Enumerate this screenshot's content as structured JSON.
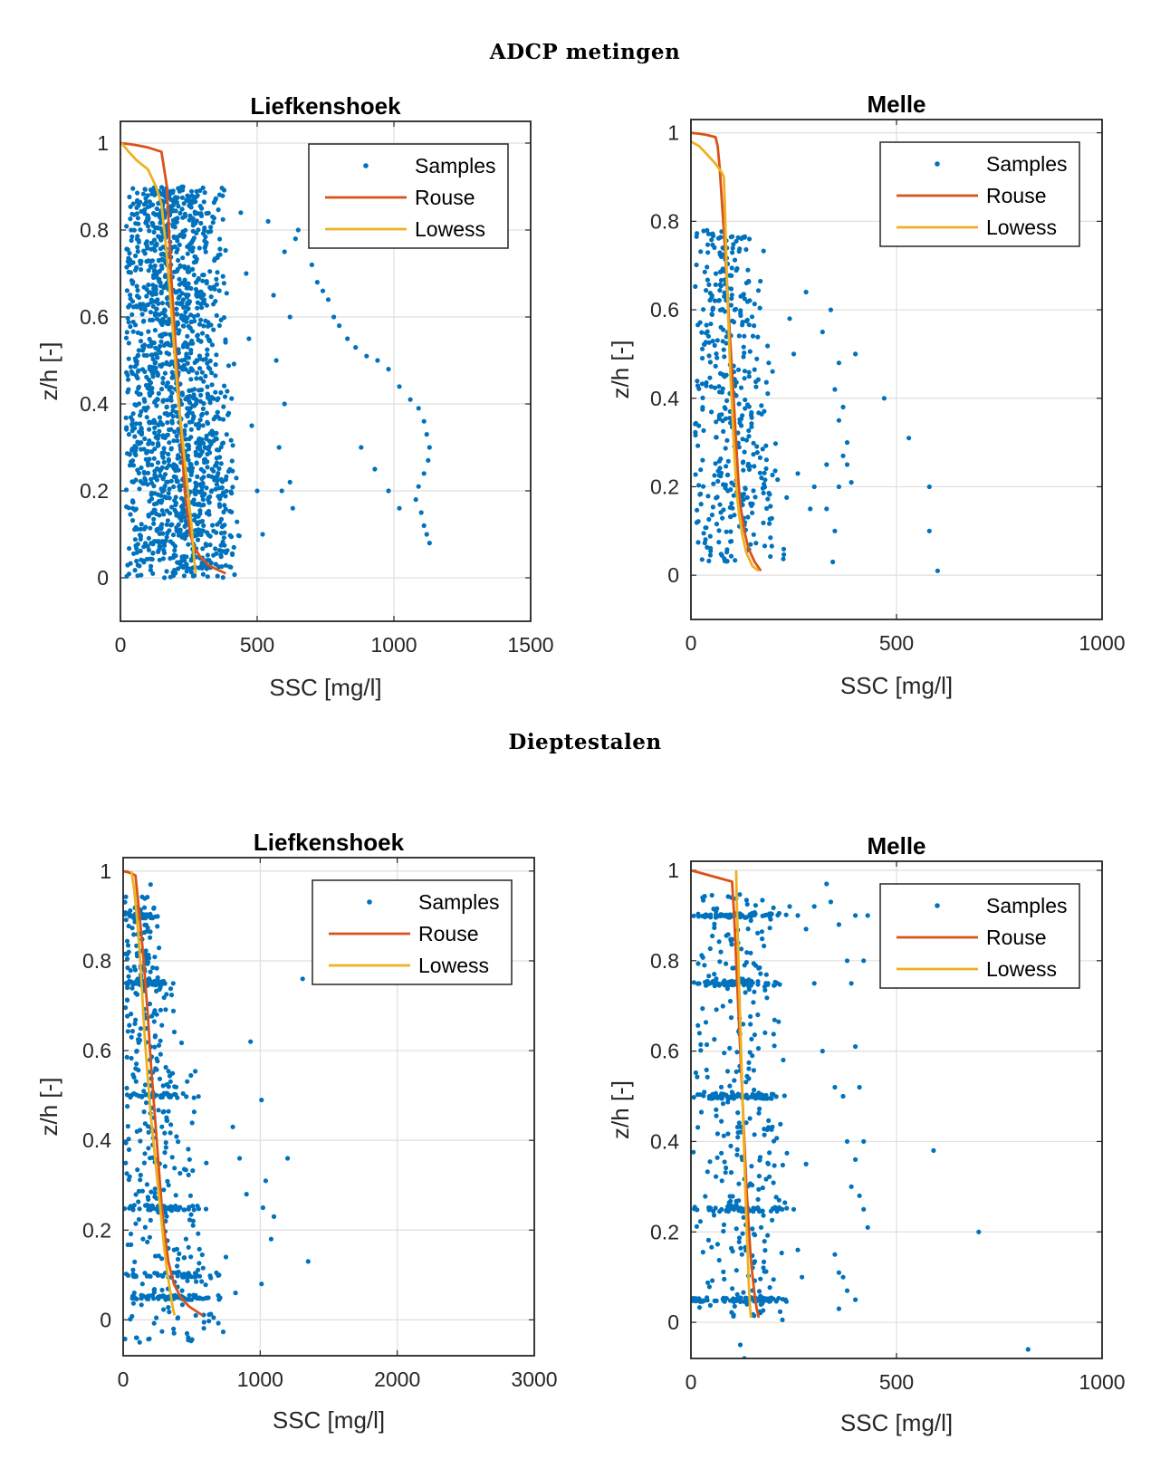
{
  "sections": [
    {
      "title": "ADCP metingen"
    },
    {
      "title": "Dieptestalen"
    }
  ],
  "colors": {
    "samples": "#0072BD",
    "rouse": "#D95319",
    "lowess": "#EDB120",
    "grid": "#DFDFDF"
  },
  "chart_data": [
    {
      "type": "scatter",
      "title": "Liefkenshoek",
      "section": "ADCP metingen",
      "xlabel": "SSC [mg/l]",
      "ylabel": "z/h [-]",
      "xlim": [
        0,
        1500
      ],
      "ylim": [
        -0.1,
        1.05
      ],
      "xticks": [
        "0",
        "500",
        "1000",
        "1500"
      ],
      "yticks": [
        "0",
        "0.2",
        "0.4",
        "0.6",
        "0.8",
        "1"
      ],
      "grid": true,
      "legend_position": "top-right",
      "legend": [
        "Samples",
        "Rouse",
        "Lowess"
      ],
      "samples_description": {
        "count": 1600,
        "bulk_x_range": [
          20,
          420
        ],
        "y_range": [
          0.0,
          0.9
        ]
      },
      "samples_extra": [
        [
          440,
          0.84
        ],
        [
          460,
          0.7
        ],
        [
          470,
          0.55
        ],
        [
          480,
          0.35
        ],
        [
          500,
          0.2
        ],
        [
          520,
          0.1
        ],
        [
          540,
          0.82
        ],
        [
          560,
          0.65
        ],
        [
          570,
          0.5
        ],
        [
          580,
          0.3
        ],
        [
          590,
          0.2
        ],
        [
          600,
          0.4
        ],
        [
          620,
          0.6
        ],
        [
          640,
          0.78
        ],
        [
          600,
          0.75
        ],
        [
          620,
          0.22
        ],
        [
          630,
          0.16
        ],
        [
          650,
          0.8
        ],
        [
          700,
          0.72
        ],
        [
          720,
          0.68
        ],
        [
          740,
          0.66
        ],
        [
          760,
          0.64
        ],
        [
          780,
          0.6
        ],
        [
          800,
          0.58
        ],
        [
          830,
          0.55
        ],
        [
          860,
          0.53
        ],
        [
          900,
          0.51
        ],
        [
          940,
          0.5
        ],
        [
          980,
          0.48
        ],
        [
          1020,
          0.44
        ],
        [
          1060,
          0.41
        ],
        [
          1090,
          0.39
        ],
        [
          1110,
          0.36
        ],
        [
          1120,
          0.33
        ],
        [
          1130,
          0.3
        ],
        [
          1125,
          0.27
        ],
        [
          1110,
          0.24
        ],
        [
          1090,
          0.21
        ],
        [
          1080,
          0.18
        ],
        [
          1100,
          0.15
        ],
        [
          1110,
          0.12
        ],
        [
          1120,
          0.1
        ],
        [
          1130,
          0.08
        ],
        [
          880,
          0.3
        ],
        [
          930,
          0.25
        ],
        [
          980,
          0.2
        ],
        [
          1020,
          0.16
        ]
      ],
      "series": [
        {
          "name": "Rouse",
          "x": [
            0,
            30,
            60,
            100,
            150,
            170,
            185,
            195,
            205,
            215,
            225,
            235,
            245,
            255,
            270,
            290,
            320,
            350,
            385
          ],
          "y": [
            1.0,
            0.998,
            0.995,
            0.99,
            0.98,
            0.9,
            0.7,
            0.6,
            0.5,
            0.4,
            0.3,
            0.2,
            0.15,
            0.1,
            0.07,
            0.05,
            0.03,
            0.02,
            0.01
          ]
        },
        {
          "name": "Lowess",
          "x": [
            5,
            30,
            60,
            100,
            130,
            150,
            160,
            170,
            180,
            190,
            200,
            210,
            220,
            230,
            240,
            250,
            260,
            265,
            270,
            275
          ],
          "y": [
            1.0,
            0.98,
            0.96,
            0.94,
            0.9,
            0.86,
            0.8,
            0.74,
            0.66,
            0.58,
            0.5,
            0.42,
            0.36,
            0.3,
            0.24,
            0.18,
            0.12,
            0.08,
            0.04,
            0.01
          ]
        }
      ]
    },
    {
      "type": "scatter",
      "title": "Melle",
      "section": "ADCP metingen",
      "xlabel": "SSC [mg/l]",
      "ylabel": "z/h [-]",
      "xlim": [
        0,
        1000
      ],
      "ylim": [
        -0.1,
        1.03
      ],
      "xticks": [
        "0",
        "500",
        "1000"
      ],
      "yticks": [
        "0",
        "0.2",
        "0.4",
        "0.6",
        "0.8",
        "1"
      ],
      "grid": true,
      "legend_position": "top-right",
      "legend": [
        "Samples",
        "Rouse",
        "Lowess"
      ],
      "samples_description": {
        "count": 420,
        "bulk_x_range": [
          10,
          230
        ],
        "y_range": [
          0.03,
          0.78
        ]
      },
      "samples_extra": [
        [
          240,
          0.58
        ],
        [
          250,
          0.5
        ],
        [
          260,
          0.23
        ],
        [
          280,
          0.64
        ],
        [
          290,
          0.15
        ],
        [
          320,
          0.55
        ],
        [
          330,
          0.25
        ],
        [
          340,
          0.6
        ],
        [
          350,
          0.42
        ],
        [
          350,
          0.1
        ],
        [
          360,
          0.48
        ],
        [
          360,
          0.35
        ],
        [
          360,
          0.2
        ],
        [
          370,
          0.38
        ],
        [
          370,
          0.27
        ],
        [
          380,
          0.25
        ],
        [
          380,
          0.3
        ],
        [
          390,
          0.21
        ],
        [
          400,
          0.5
        ],
        [
          345,
          0.03
        ],
        [
          470,
          0.4
        ],
        [
          530,
          0.31
        ],
        [
          580,
          0.2
        ],
        [
          580,
          0.1
        ],
        [
          600,
          0.01
        ],
        [
          300,
          0.2
        ],
        [
          330,
          0.15
        ]
      ],
      "series": [
        {
          "name": "Rouse",
          "x": [
            0,
            20,
            40,
            60,
            65,
            70,
            75,
            80,
            85,
            90,
            95,
            100,
            105,
            110,
            115,
            120,
            130,
            140,
            155,
            170
          ],
          "y": [
            1.0,
            0.998,
            0.995,
            0.99,
            0.97,
            0.92,
            0.85,
            0.78,
            0.7,
            0.62,
            0.54,
            0.46,
            0.38,
            0.3,
            0.22,
            0.16,
            0.1,
            0.06,
            0.03,
            0.01
          ]
        },
        {
          "name": "Lowess",
          "x": [
            0,
            20,
            40,
            60,
            75,
            80,
            82,
            85,
            88,
            92,
            96,
            100,
            104,
            108,
            112,
            118,
            125,
            135,
            150,
            165
          ],
          "y": [
            0.98,
            0.97,
            0.95,
            0.93,
            0.91,
            0.9,
            0.85,
            0.75,
            0.65,
            0.55,
            0.45,
            0.38,
            0.3,
            0.24,
            0.18,
            0.13,
            0.09,
            0.05,
            0.02,
            0.01
          ]
        }
      ]
    },
    {
      "type": "scatter",
      "title": "Liefkenshoek",
      "section": "Dieptestalen",
      "xlabel": "SSC [mg/l]",
      "ylabel": "z/h [-]",
      "xlim": [
        0,
        3000
      ],
      "ylim": [
        -0.08,
        1.03
      ],
      "xticks": [
        "0",
        "1000",
        "2000",
        "3000"
      ],
      "yticks": [
        "0",
        "0.2",
        "0.4",
        "0.6",
        "0.8",
        "1"
      ],
      "grid": true,
      "legend_position": "top-right",
      "legend": [
        "Samples",
        "Rouse",
        "Lowess"
      ],
      "samples_description": {
        "count": 650,
        "bulk_x_range": [
          10,
          700
        ],
        "y_range": [
          -0.05,
          0.95
        ],
        "horizontal_bands": [
          0.9,
          0.75,
          0.5,
          0.25,
          0.1,
          0.05
        ]
      },
      "samples_extra": [
        [
          930,
          0.62
        ],
        [
          1010,
          0.49
        ],
        [
          1040,
          0.31
        ],
        [
          1020,
          0.25
        ],
        [
          1100,
          0.23
        ],
        [
          1080,
          0.18
        ],
        [
          1200,
          0.36
        ],
        [
          1010,
          0.08
        ],
        [
          1310,
          0.76
        ],
        [
          1350,
          0.13
        ],
        [
          900,
          0.28
        ],
        [
          800,
          0.43
        ],
        [
          850,
          0.36
        ],
        [
          700,
          0.1
        ],
        [
          750,
          0.14
        ],
        [
          820,
          0.06
        ],
        [
          660,
          0.005
        ],
        [
          400,
          0.005
        ],
        [
          100,
          -0.04
        ],
        [
          120,
          -0.05
        ],
        [
          200,
          0.97
        ]
      ],
      "series": [
        {
          "name": "Rouse",
          "x": [
            0,
            30,
            60,
            90,
            120,
            150,
            180,
            200,
            220,
            240,
            260,
            280,
            300,
            330,
            370,
            420,
            480,
            530,
            580
          ],
          "y": [
            1.0,
            0.998,
            0.995,
            0.99,
            0.9,
            0.8,
            0.68,
            0.58,
            0.5,
            0.42,
            0.34,
            0.26,
            0.2,
            0.13,
            0.08,
            0.05,
            0.03,
            0.02,
            0.01
          ]
        },
        {
          "name": "Lowess",
          "x": [
            60,
            80,
            100,
            120,
            140,
            160,
            180,
            200,
            220,
            240,
            260,
            280,
            300,
            320,
            340,
            360,
            375
          ],
          "y": [
            1.0,
            0.96,
            0.9,
            0.82,
            0.72,
            0.62,
            0.54,
            0.46,
            0.4,
            0.34,
            0.28,
            0.22,
            0.16,
            0.11,
            0.07,
            0.03,
            0.01
          ]
        }
      ]
    },
    {
      "type": "scatter",
      "title": "Melle",
      "section": "Dieptestalen",
      "xlabel": "SSC [mg/l]",
      "ylabel": "z/h [-]",
      "xlim": [
        0,
        1000
      ],
      "ylim": [
        -0.08,
        1.02
      ],
      "xticks": [
        "0",
        "500",
        "1000"
      ],
      "yticks": [
        "0",
        "0.2",
        "0.4",
        "0.6",
        "0.8",
        "1"
      ],
      "grid": true,
      "legend_position": "top-right",
      "legend": [
        "Samples",
        "Rouse",
        "Lowess"
      ],
      "samples_description": {
        "count": 600,
        "bulk_x_range": [
          5,
          230
        ],
        "y_range": [
          0.0,
          0.95
        ],
        "horizontal_bands": [
          0.9,
          0.75,
          0.5,
          0.25,
          0.05
        ]
      },
      "samples_extra": [
        [
          240,
          0.92
        ],
        [
          260,
          0.9
        ],
        [
          280,
          0.87
        ],
        [
          300,
          0.92
        ],
        [
          330,
          0.97
        ],
        [
          340,
          0.93
        ],
        [
          360,
          0.88
        ],
        [
          380,
          0.8
        ],
        [
          390,
          0.75
        ],
        [
          400,
          0.9
        ],
        [
          420,
          0.8
        ],
        [
          430,
          0.9
        ],
        [
          300,
          0.75
        ],
        [
          320,
          0.6
        ],
        [
          350,
          0.52
        ],
        [
          370,
          0.5
        ],
        [
          380,
          0.4
        ],
        [
          400,
          0.61
        ],
        [
          410,
          0.52
        ],
        [
          420,
          0.4
        ],
        [
          400,
          0.36
        ],
        [
          390,
          0.3
        ],
        [
          410,
          0.28
        ],
        [
          420,
          0.25
        ],
        [
          430,
          0.21
        ],
        [
          350,
          0.15
        ],
        [
          360,
          0.11
        ],
        [
          370,
          0.1
        ],
        [
          380,
          0.07
        ],
        [
          400,
          0.05
        ],
        [
          360,
          0.03
        ],
        [
          590,
          0.38
        ],
        [
          700,
          0.2
        ],
        [
          820,
          -0.06
        ],
        [
          120,
          -0.05
        ],
        [
          130,
          -0.08
        ],
        [
          280,
          0.35
        ],
        [
          250,
          0.25
        ],
        [
          260,
          0.16
        ],
        [
          270,
          0.1
        ],
        [
          230,
          0.05
        ]
      ],
      "series": [
        {
          "name": "Rouse",
          "x": [
            0,
            20,
            40,
            60,
            80,
            100,
            105,
            110,
            115,
            120,
            125,
            130,
            135,
            140,
            145,
            150,
            155,
            160,
            165
          ],
          "y": [
            1.0,
            0.995,
            0.99,
            0.985,
            0.98,
            0.975,
            0.9,
            0.8,
            0.7,
            0.6,
            0.5,
            0.4,
            0.3,
            0.22,
            0.15,
            0.1,
            0.06,
            0.03,
            0.01
          ]
        },
        {
          "name": "Lowess",
          "x": [
            110,
            112,
            114,
            116,
            118,
            120,
            122,
            124,
            126,
            128,
            130,
            132,
            134,
            136,
            138,
            140,
            142,
            144,
            146
          ],
          "y": [
            1.0,
            0.92,
            0.85,
            0.78,
            0.72,
            0.66,
            0.6,
            0.54,
            0.48,
            0.42,
            0.36,
            0.3,
            0.25,
            0.2,
            0.15,
            0.1,
            0.06,
            0.03,
            0.01
          ]
        }
      ]
    }
  ]
}
